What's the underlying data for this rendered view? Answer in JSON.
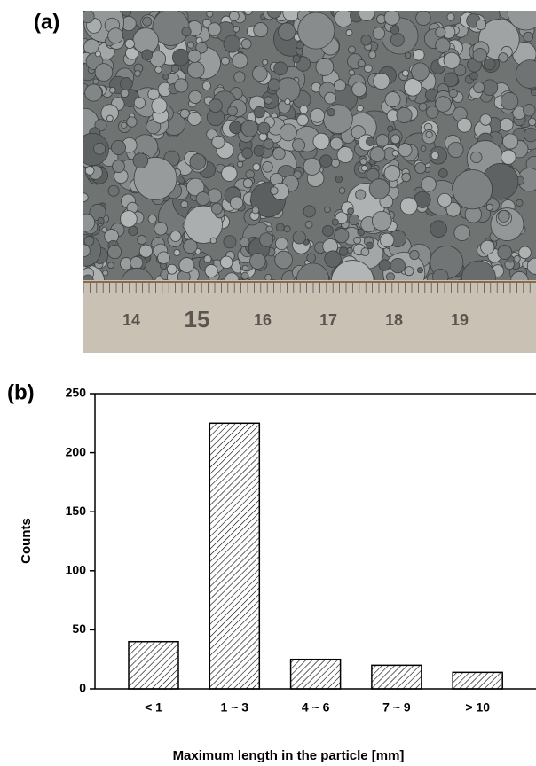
{
  "photo": {
    "panel_label": "(a)",
    "ruler_labels": [
      "14",
      "15",
      "16",
      "17",
      "18",
      "19"
    ]
  },
  "chart_data": {
    "type": "bar",
    "panel_label": "(b)",
    "x_label": "Maximum length in the particle [mm]",
    "y_label": "Counts",
    "categories": [
      "< 1",
      "1 ~ 3",
      "4 ~ 6",
      "7 ~ 9",
      "> 10"
    ],
    "values": [
      40,
      225,
      25,
      20,
      14
    ],
    "color": "#000000",
    "ylim": [
      0,
      250
    ],
    "yticks": [
      0,
      50,
      100,
      150,
      200,
      250
    ]
  }
}
